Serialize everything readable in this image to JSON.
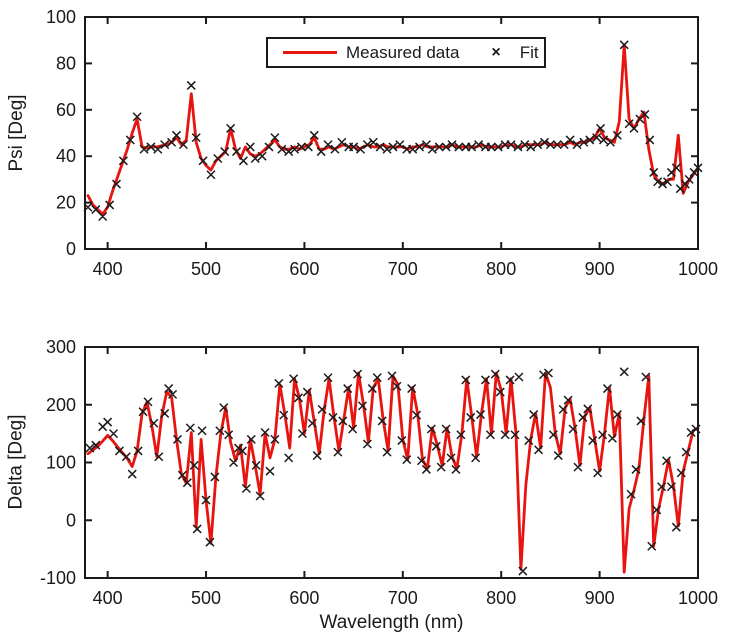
{
  "figure": {
    "xlabel": "Wavelength (nm)",
    "background": "#ffffff",
    "axis_color": "#1a1a1a",
    "legend": {
      "measured_label": "Measured data",
      "fit_label": "Fit",
      "marker_glyph": "×"
    }
  },
  "chart_data": [
    {
      "id": "psi",
      "type": "line",
      "title": "",
      "ylabel": "Psi [Deg]",
      "xlabel": "",
      "xlim": [
        377,
        1000
      ],
      "ylim": [
        0,
        100
      ],
      "xticks": [
        400,
        500,
        600,
        700,
        800,
        900,
        1000
      ],
      "yticks": [
        0,
        20,
        40,
        60,
        80,
        100
      ],
      "grid": false,
      "legend": {
        "show": true,
        "position": "top-center-inside",
        "entries": [
          "Measured data",
          "Fit"
        ]
      },
      "series": [
        {
          "name": "Measured data",
          "type": "line",
          "color": "#e81410",
          "x": [
            380,
            385,
            390,
            395,
            400,
            405,
            410,
            415,
            420,
            425,
            430,
            435,
            440,
            445,
            450,
            455,
            460,
            465,
            470,
            475,
            480,
            485,
            490,
            495,
            500,
            505,
            510,
            515,
            520,
            525,
            530,
            535,
            540,
            545,
            550,
            555,
            560,
            565,
            570,
            575,
            580,
            585,
            590,
            595,
            600,
            605,
            610,
            615,
            620,
            625,
            630,
            635,
            640,
            645,
            650,
            655,
            660,
            665,
            670,
            675,
            680,
            685,
            690,
            695,
            700,
            705,
            710,
            715,
            720,
            725,
            730,
            735,
            740,
            745,
            750,
            755,
            760,
            765,
            770,
            775,
            780,
            785,
            790,
            795,
            800,
            805,
            810,
            815,
            820,
            825,
            830,
            835,
            840,
            845,
            850,
            855,
            860,
            865,
            870,
            875,
            880,
            885,
            890,
            895,
            900,
            905,
            910,
            915,
            920,
            925,
            930,
            935,
            940,
            945,
            950,
            955,
            960,
            965,
            970,
            975,
            980,
            985,
            990,
            995,
            1000
          ],
          "y": [
            23,
            19,
            17,
            15,
            18,
            25,
            31,
            37,
            43,
            50,
            56,
            44,
            43.5,
            44,
            44,
            44.5,
            45,
            46,
            48,
            45,
            47,
            67,
            46,
            39,
            36,
            34,
            38,
            40,
            42,
            52,
            43,
            39,
            44,
            41,
            40,
            41,
            43,
            45,
            47,
            44,
            43,
            43,
            44,
            43,
            44,
            45,
            48,
            43,
            43,
            44,
            43,
            44,
            45,
            44,
            44,
            43,
            44,
            45,
            44,
            44,
            45,
            44,
            44,
            44,
            44,
            43,
            44,
            44,
            45,
            44,
            44,
            44,
            44,
            44,
            45,
            44,
            44,
            44,
            44,
            44,
            45,
            44,
            44,
            44,
            44,
            45,
            45,
            44,
            44,
            45,
            45,
            45,
            45,
            46,
            45,
            45,
            45,
            45,
            46,
            45,
            46,
            46,
            47,
            48,
            52,
            48,
            47,
            46,
            55,
            88,
            56,
            52,
            56,
            59,
            43,
            32,
            29,
            28,
            30,
            30,
            49,
            24,
            29,
            32,
            35
          ]
        },
        {
          "name": "Fit",
          "type": "scatter",
          "marker": "x",
          "color": "#1b1b1b",
          "x": [
            380,
            388,
            395,
            402,
            409,
            416,
            423,
            430,
            437,
            444,
            451,
            458,
            465,
            470,
            477,
            485,
            490,
            497,
            505,
            512,
            519,
            525,
            531,
            538,
            545,
            550,
            557,
            564,
            570,
            577,
            584,
            590,
            597,
            604,
            610,
            617,
            624,
            631,
            638,
            645,
            650,
            657,
            664,
            670,
            677,
            684,
            690,
            697,
            704,
            710,
            717,
            724,
            730,
            737,
            744,
            750,
            757,
            764,
            770,
            777,
            784,
            790,
            797,
            804,
            810,
            817,
            824,
            830,
            837,
            844,
            850,
            857,
            864,
            870,
            877,
            884,
            890,
            897,
            901,
            904,
            911,
            918,
            925,
            930,
            935,
            941,
            946,
            951,
            955,
            959,
            964,
            969,
            973,
            978,
            982,
            987,
            991,
            996,
            1000
          ],
          "y": [
            18,
            17,
            14,
            19,
            28,
            38,
            47,
            57,
            43,
            44,
            43,
            45,
            46,
            49,
            45,
            70.5,
            48,
            38,
            32,
            39,
            42,
            52,
            42,
            38,
            44,
            39,
            40,
            44,
            48,
            43,
            42,
            43,
            44,
            44,
            49,
            42,
            45,
            43,
            46,
            44,
            44,
            43,
            45,
            46,
            44,
            43,
            44,
            45,
            43,
            43,
            44,
            45,
            43,
            44,
            44,
            45,
            44,
            44,
            44,
            45,
            44,
            44,
            44,
            45,
            45,
            44,
            45,
            44,
            45,
            46,
            45,
            45,
            45,
            47,
            45,
            46,
            47,
            48,
            52,
            47,
            46,
            49,
            88,
            54,
            52,
            56,
            58,
            47,
            33,
            29,
            28,
            29,
            33,
            35,
            26,
            28,
            30,
            33,
            35
          ]
        }
      ]
    },
    {
      "id": "delta",
      "type": "line",
      "title": "",
      "ylabel": "Delta [Deg]",
      "xlabel": "Wavelength (nm)",
      "xlim": [
        377,
        1000
      ],
      "ylim": [
        -100,
        300
      ],
      "xticks": [
        400,
        500,
        600,
        700,
        800,
        900,
        1000
      ],
      "yticks": [
        -100,
        0,
        100,
        200,
        300
      ],
      "grid": false,
      "legend": {
        "show": false
      },
      "series": [
        {
          "name": "Measured data",
          "type": "line",
          "color": "#e81410",
          "x": [
            380,
            385,
            390,
            395,
            400,
            405,
            410,
            415,
            420,
            425,
            430,
            435,
            440,
            445,
            450,
            455,
            460,
            465,
            470,
            475,
            480,
            485,
            490,
            495,
            500,
            505,
            510,
            515,
            520,
            525,
            530,
            535,
            540,
            545,
            550,
            555,
            560,
            565,
            570,
            575,
            580,
            585,
            590,
            595,
            600,
            605,
            610,
            615,
            620,
            625,
            630,
            635,
            640,
            645,
            650,
            655,
            660,
            665,
            670,
            675,
            680,
            685,
            690,
            695,
            700,
            705,
            710,
            715,
            720,
            725,
            730,
            735,
            740,
            745,
            750,
            755,
            760,
            765,
            770,
            775,
            780,
            785,
            790,
            795,
            800,
            805,
            810,
            815,
            820,
            825,
            830,
            835,
            840,
            845,
            850,
            855,
            860,
            865,
            870,
            875,
            880,
            885,
            890,
            895,
            900,
            905,
            910,
            915,
            920,
            925,
            930,
            935,
            940,
            945,
            950,
            955,
            960,
            965,
            970,
            975,
            980,
            985,
            990,
            995,
            1000
          ],
          "y": [
            115,
            122,
            128,
            137,
            147,
            138,
            127,
            117,
            107,
            93,
            120,
            185,
            205,
            163,
            110,
            180,
            222,
            213,
            140,
            80,
            64,
            152,
            -12,
            140,
            35,
            -40,
            75,
            150,
            195,
            135,
            103,
            130,
            58,
            140,
            95,
            45,
            150,
            108,
            140,
            235,
            185,
            125,
            245,
            210,
            150,
            225,
            170,
            115,
            190,
            245,
            180,
            120,
            175,
            230,
            160,
            255,
            200,
            135,
            230,
            245,
            175,
            120,
            250,
            235,
            140,
            105,
            230,
            185,
            105,
            90,
            160,
            130,
            95,
            160,
            110,
            90,
            150,
            245,
            180,
            110,
            185,
            245,
            150,
            255,
            225,
            150,
            245,
            150,
            -85,
            60,
            140,
            185,
            125,
            255,
            230,
            150,
            115,
            195,
            210,
            160,
            95,
            180,
            195,
            140,
            85,
            150,
            230,
            145,
            185,
            -90,
            20,
            52,
            90,
            175,
            250,
            -45,
            20,
            60,
            105,
            60,
            -10,
            85,
            120,
            155,
            160
          ]
        },
        {
          "name": "Fit",
          "type": "scatter",
          "marker": "x",
          "color": "#1b1b1b",
          "x": [
            382,
            388,
            395,
            400,
            406,
            412,
            419,
            425,
            431,
            436,
            441,
            447,
            452,
            458,
            462,
            466,
            471,
            476,
            481,
            484,
            488,
            491,
            496,
            500,
            504,
            509,
            514,
            518,
            523,
            528,
            533,
            537,
            541,
            546,
            551,
            555,
            560,
            565,
            570,
            574,
            579,
            584,
            589,
            594,
            598,
            603,
            608,
            613,
            618,
            624,
            629,
            634,
            639,
            644,
            649,
            654,
            659,
            664,
            669,
            674,
            679,
            684,
            689,
            694,
            699,
            704,
            709,
            714,
            719,
            724,
            729,
            734,
            739,
            744,
            749,
            754,
            759,
            764,
            769,
            774,
            779,
            784,
            789,
            794,
            799,
            804,
            809,
            814,
            818,
            822,
            828,
            833,
            838,
            843,
            848,
            853,
            858,
            863,
            868,
            873,
            878,
            883,
            888,
            893,
            898,
            903,
            908,
            913,
            918,
            925,
            932,
            937,
            942,
            947,
            953,
            958,
            963,
            968,
            973,
            978,
            983,
            988,
            993,
            998
          ],
          "y": [
            125,
            130,
            162,
            170,
            150,
            120,
            110,
            80,
            120,
            188,
            205,
            168,
            110,
            185,
            228,
            218,
            140,
            78,
            65,
            160,
            95,
            -15,
            155,
            35,
            -38,
            75,
            155,
            195,
            148,
            100,
            125,
            120,
            55,
            140,
            95,
            42,
            152,
            85,
            140,
            237,
            182,
            108,
            245,
            212,
            150,
            222,
            168,
            112,
            192,
            247,
            178,
            118,
            172,
            228,
            158,
            253,
            198,
            132,
            228,
            247,
            172,
            118,
            250,
            232,
            138,
            105,
            228,
            182,
            103,
            88,
            158,
            128,
            92,
            158,
            108,
            88,
            148,
            243,
            178,
            108,
            183,
            243,
            148,
            253,
            222,
            148,
            243,
            148,
            248,
            -88,
            138,
            183,
            122,
            252,
            255,
            148,
            112,
            192,
            208,
            158,
            92,
            178,
            193,
            138,
            82,
            148,
            228,
            142,
            183,
            257,
            45,
            88,
            172,
            248,
            -45,
            18,
            58,
            103,
            58,
            -12,
            82,
            118,
            152,
            158
          ]
        }
      ]
    }
  ]
}
